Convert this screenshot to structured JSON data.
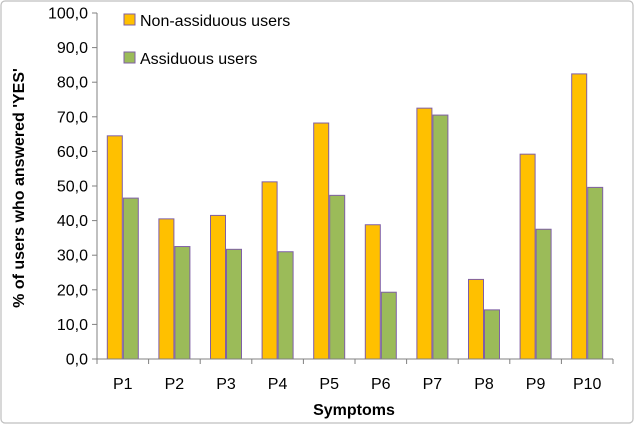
{
  "chart_data": {
    "type": "bar",
    "title": "",
    "xlabel": "Symptoms",
    "ylabel": "% of users who answered 'YES'",
    "ylim": [
      0,
      100
    ],
    "yticks": [
      "0,0",
      "10,0",
      "20,0",
      "30,0",
      "40,0",
      "50,0",
      "60,0",
      "70,0",
      "80,0",
      "90,0",
      "100,0"
    ],
    "grid": false,
    "legend_position": "top-left",
    "categories": [
      "P1",
      "P2",
      "P3",
      "P4",
      "P5",
      "P6",
      "P7",
      "P8",
      "P9",
      "P10"
    ],
    "series": [
      {
        "name": "Non-assiduous users",
        "color": "#FFC000",
        "edge": "#7F5FA6",
        "values": [
          64.5,
          40.5,
          41.5,
          51.2,
          68.2,
          38.8,
          72.5,
          23.0,
          59.2,
          82.4
        ]
      },
      {
        "name": "Assiduous users",
        "color": "#9BBB59",
        "edge": "#7F5FA6",
        "values": [
          46.5,
          32.5,
          31.7,
          31.0,
          47.3,
          19.3,
          70.5,
          14.2,
          37.5,
          49.6
        ]
      }
    ]
  }
}
